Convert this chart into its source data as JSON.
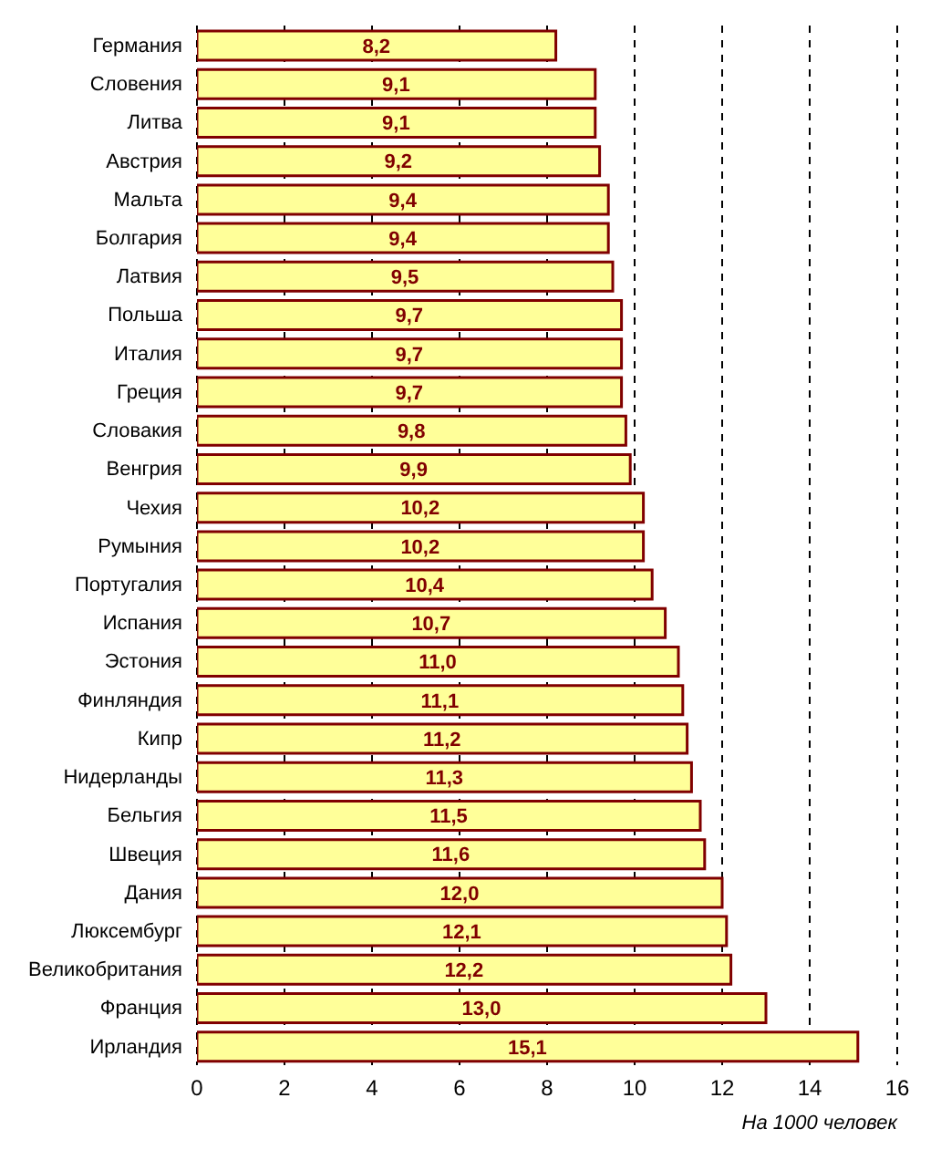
{
  "chart_data": {
    "type": "bar",
    "orientation": "horizontal",
    "xlabel": "На 1000 человек",
    "categories": [
      "Германия",
      "Словения",
      "Литва",
      "Австрия",
      "Мальта",
      "Болгария",
      "Латвия",
      "Польша",
      "Италия",
      "Греция",
      "Словакия",
      "Венгрия",
      "Чехия",
      "Румыния",
      "Португалия",
      "Испания",
      "Эстония",
      "Финляндия",
      "Кипр",
      "Нидерланды",
      "Бельгия",
      "Швеция",
      "Дания",
      "Люксембург",
      "Великобритания",
      "Франция",
      "Ирландия"
    ],
    "values": [
      8.2,
      9.1,
      9.1,
      9.2,
      9.4,
      9.4,
      9.5,
      9.7,
      9.7,
      9.7,
      9.8,
      9.9,
      10.2,
      10.2,
      10.4,
      10.7,
      11.0,
      11.1,
      11.2,
      11.3,
      11.5,
      11.6,
      12.0,
      12.1,
      12.2,
      13.0,
      15.1
    ],
    "value_labels": [
      "8,2",
      "9,1",
      "9,1",
      "9,2",
      "9,4",
      "9,4",
      "9,5",
      "9,7",
      "9,7",
      "9,7",
      "9,8",
      "9,9",
      "10,2",
      "10,2",
      "10,4",
      "10,7",
      "11,0",
      "11,1",
      "11,2",
      "11,3",
      "11,5",
      "11,6",
      "12,0",
      "12,1",
      "12,2",
      "13,0",
      "15,1"
    ],
    "color": "#ffff99",
    "xlim": [
      0,
      16
    ],
    "xticks": [
      0,
      2,
      4,
      6,
      8,
      10,
      12,
      14,
      16
    ],
    "grid": "x"
  }
}
